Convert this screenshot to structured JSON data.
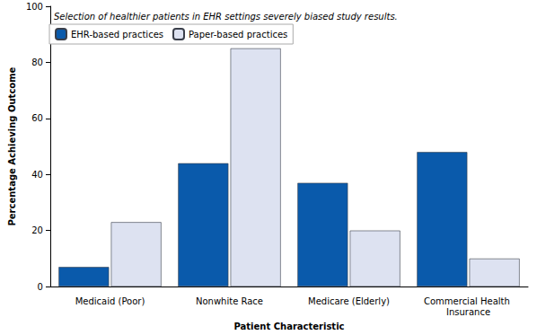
{
  "chart_data": {
    "type": "bar",
    "subtitle": "Selection of healthier patients in EHR settings severely biased study results.",
    "x_label": "Patient Characteristic",
    "y_label": "Percentage Achieving Outcome",
    "categories": [
      "Medicaid (Poor)",
      "Nonwhite Race",
      "Medicare (Elderly)",
      "Commercial Health Insurance"
    ],
    "series": [
      {
        "name": "EHR-based practices",
        "color": "#0a5aab",
        "values": [
          7,
          44,
          37,
          48
        ]
      },
      {
        "name": "Paper-based practices",
        "color": "#dde2f1",
        "values": [
          23,
          85,
          20,
          10
        ]
      }
    ],
    "ylim": [
      0,
      100
    ],
    "yticks": [
      0,
      20,
      40,
      60,
      80,
      100
    ],
    "grid": false,
    "legend": "upper left"
  }
}
